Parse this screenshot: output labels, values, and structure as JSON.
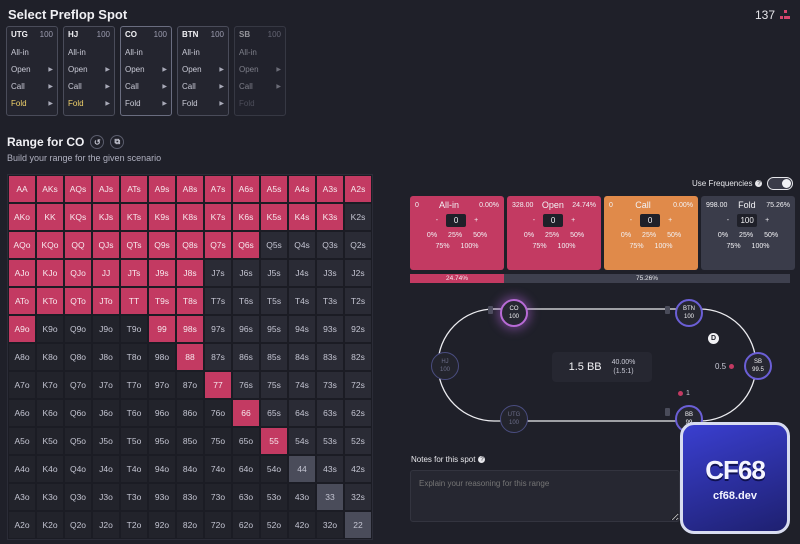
{
  "header": {
    "title": "Select Preflop Spot",
    "counter": "137",
    "counter_icon": "tree-icon"
  },
  "spots": [
    {
      "pos": "UTG",
      "stack": "100",
      "options": [
        "All-in",
        "Open",
        "Call",
        "Fold"
      ],
      "selected": "Fold",
      "active": false,
      "disabled": false
    },
    {
      "pos": "HJ",
      "stack": "100",
      "options": [
        "All-in",
        "Open",
        "Call",
        "Fold"
      ],
      "selected": "Fold",
      "active": false,
      "disabled": false
    },
    {
      "pos": "CO",
      "stack": "100",
      "options": [
        "All-in",
        "Open",
        "Call",
        "Fold"
      ],
      "selected": "",
      "active": true,
      "disabled": false
    },
    {
      "pos": "BTN",
      "stack": "100",
      "options": [
        "All-in",
        "Open",
        "Call",
        "Fold"
      ],
      "selected": "",
      "active": false,
      "disabled": false
    },
    {
      "pos": "SB",
      "stack": "100",
      "options": [
        "All-in",
        "Open",
        "Call",
        "Fold"
      ],
      "selected": "Fold",
      "active": false,
      "disabled": true
    }
  ],
  "range": {
    "title": "Range for CO",
    "subtitle": "Build your range for the given scenario"
  },
  "grid": {
    "rows": [
      [
        "AA",
        "AKs",
        "AQs",
        "AJs",
        "ATs",
        "A9s",
        "A8s",
        "A7s",
        "A6s",
        "A5s",
        "A4s",
        "A3s",
        "A2s"
      ],
      [
        "AKo",
        "KK",
        "KQs",
        "KJs",
        "KTs",
        "K9s",
        "K8s",
        "K7s",
        "K6s",
        "K5s",
        "K4s",
        "K3s",
        "K2s"
      ],
      [
        "AQo",
        "KQo",
        "QQ",
        "QJs",
        "QTs",
        "Q9s",
        "Q8s",
        "Q7s",
        "Q6s",
        "Q5s",
        "Q4s",
        "Q3s",
        "Q2s"
      ],
      [
        "AJo",
        "KJo",
        "QJo",
        "JJ",
        "JTs",
        "J9s",
        "J8s",
        "J7s",
        "J6s",
        "J5s",
        "J4s",
        "J3s",
        "J2s"
      ],
      [
        "ATo",
        "KTo",
        "QTo",
        "JTo",
        "TT",
        "T9s",
        "T8s",
        "T7s",
        "T6s",
        "T5s",
        "T4s",
        "T3s",
        "T2s"
      ],
      [
        "A9o",
        "K9o",
        "Q9o",
        "J9o",
        "T9o",
        "99",
        "98s",
        "97s",
        "96s",
        "95s",
        "94s",
        "93s",
        "92s"
      ],
      [
        "A8o",
        "K8o",
        "Q8o",
        "J8o",
        "T8o",
        "98o",
        "88",
        "87s",
        "86s",
        "85s",
        "84s",
        "83s",
        "82s"
      ],
      [
        "A7o",
        "K7o",
        "Q7o",
        "J7o",
        "T7o",
        "97o",
        "87o",
        "77",
        "76s",
        "75s",
        "74s",
        "73s",
        "72s"
      ],
      [
        "A6o",
        "K6o",
        "Q6o",
        "J6o",
        "T6o",
        "96o",
        "86o",
        "76o",
        "66",
        "65s",
        "64s",
        "63s",
        "62s"
      ],
      [
        "A5o",
        "K5o",
        "Q5o",
        "J5o",
        "T5o",
        "95o",
        "85o",
        "75o",
        "65o",
        "55",
        "54s",
        "53s",
        "52s"
      ],
      [
        "A4o",
        "K4o",
        "Q4o",
        "J4o",
        "T4o",
        "94o",
        "84o",
        "74o",
        "64o",
        "54o",
        "44",
        "43s",
        "42s"
      ],
      [
        "A3o",
        "K3o",
        "Q3o",
        "J3o",
        "T3o",
        "93o",
        "83o",
        "73o",
        "63o",
        "53o",
        "43o",
        "33",
        "32s"
      ],
      [
        "A2o",
        "K2o",
        "Q2o",
        "J2o",
        "T2o",
        "92o",
        "82o",
        "72o",
        "62o",
        "52o",
        "42o",
        "32o",
        "22"
      ]
    ],
    "raise_hands": [
      "AA",
      "AKs",
      "AQs",
      "AJs",
      "ATs",
      "A9s",
      "A8s",
      "A7s",
      "A6s",
      "A5s",
      "A4s",
      "A3s",
      "A2s",
      "AKo",
      "KK",
      "KQs",
      "KJs",
      "KTs",
      "K9s",
      "K8s",
      "K7s",
      "K6s",
      "K5s",
      "K4s",
      "K3s",
      "AQo",
      "KQo",
      "QQ",
      "QJs",
      "QTs",
      "Q9s",
      "Q8s",
      "Q7s",
      "Q6s",
      "AJo",
      "KJo",
      "QJo",
      "JJ",
      "JTs",
      "J9s",
      "J8s",
      "ATo",
      "KTo",
      "QTo",
      "JTo",
      "TT",
      "T9s",
      "T8s",
      "A9o",
      "99",
      "98s",
      "88",
      "77",
      "66",
      "55"
    ],
    "grey_hands": [
      "44",
      "33",
      "22"
    ]
  },
  "frequencies": {
    "label": "Use Frequencies",
    "enabled": true
  },
  "actions": [
    {
      "key": "allin",
      "name": "All-in",
      "amount": "0",
      "pct": "0.00%",
      "value": "0",
      "color": "#c33a62",
      "presets": [
        "0%",
        "25%",
        "50%",
        "75%",
        "100%"
      ]
    },
    {
      "key": "open",
      "name": "Open",
      "amount": "328.00",
      "pct": "24.74%",
      "value": "0",
      "color": "#c33a62",
      "presets": [
        "0%",
        "25%",
        "50%",
        "75%",
        "100%"
      ]
    },
    {
      "key": "call",
      "name": "Call",
      "amount": "0",
      "pct": "0.00%",
      "value": "0",
      "color": "#e08a4a",
      "presets": [
        "0%",
        "25%",
        "50%",
        "75%",
        "100%"
      ]
    },
    {
      "key": "fold",
      "name": "Fold",
      "amount": "998.00",
      "pct": "75.26%",
      "value": "100",
      "color": "#3a3c4a",
      "presets": [
        "0%",
        "25%",
        "50%",
        "75%",
        "100%"
      ]
    }
  ],
  "bar": {
    "raise_label": "24.74%",
    "fold_label": "75.26%",
    "raise_fraction": 0.2474
  },
  "table": {
    "pot": "1.5 BB",
    "pot_pct": "40.00%",
    "pot_ratio": "(1.5:1)",
    "seats": [
      {
        "name": "CO",
        "stack": "100",
        "state": "active"
      },
      {
        "name": "BTN",
        "stack": "100",
        "state": "live"
      },
      {
        "name": "SB",
        "stack": "99.5",
        "state": "live"
      },
      {
        "name": "BB",
        "stack": "99",
        "state": "live"
      },
      {
        "name": "UTG",
        "stack": "100",
        "state": "folded"
      },
      {
        "name": "HJ",
        "stack": "100",
        "state": "folded"
      }
    ],
    "dealer": "D",
    "sb_bet": "0.5",
    "bb_bet": "1"
  },
  "notes": {
    "label": "Notes for this spot",
    "placeholder": "Explain your reasoning for this range"
  },
  "watermark": {
    "logo": "CF68",
    "url": "cf68.dev"
  }
}
